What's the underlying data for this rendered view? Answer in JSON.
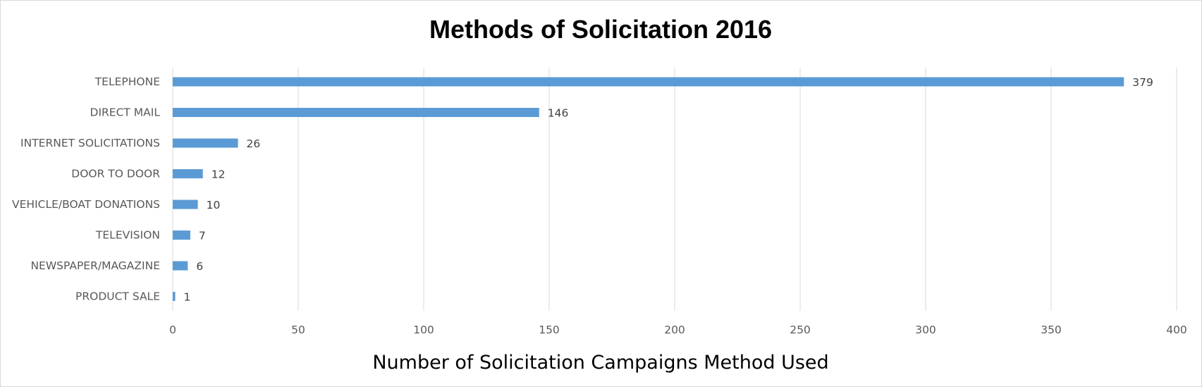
{
  "chart_data": {
    "type": "bar",
    "orientation": "horizontal",
    "title": "Methods of Solicitation 2016",
    "xlabel": "Number of Solicitation Campaigns Method Used",
    "ylabel": "",
    "categories": [
      "TELEPHONE",
      "DIRECT MAIL",
      "INTERNET SOLICITATIONS",
      "DOOR TO DOOR",
      "VEHICLE/BOAT DONATIONS",
      "TELEVISION",
      "NEWSPAPER/MAGAZINE",
      "PRODUCT SALE"
    ],
    "values": [
      379,
      146,
      26,
      12,
      10,
      7,
      6,
      1
    ],
    "xlim": [
      0,
      400
    ],
    "xticks": [
      0,
      50,
      100,
      150,
      200,
      250,
      300,
      350,
      400
    ],
    "grid": "vertical",
    "legend": "none",
    "bar_color": "#5b9bd5"
  }
}
